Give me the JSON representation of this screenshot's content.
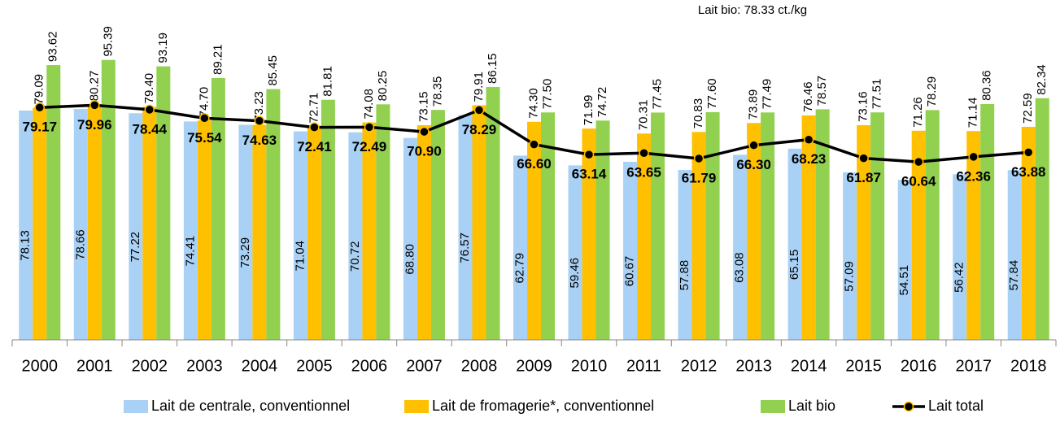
{
  "chart_data": {
    "type": "bar",
    "annotation": "Lait bio: 78.33 ct./kg",
    "categories": [
      "2000",
      "2001",
      "2002",
      "2003",
      "2004",
      "2005",
      "2006",
      "2007",
      "2008",
      "2009",
      "2010",
      "2011",
      "2012",
      "2013",
      "2014",
      "2015",
      "2016",
      "2017",
      "2018"
    ],
    "ylim": [
      0,
      115.8
    ],
    "series": [
      {
        "name": "Lait de centrale, conventionnel",
        "color": "#a9d1f5",
        "values": [
          78.13,
          78.66,
          77.22,
          74.41,
          73.29,
          71.04,
          70.72,
          68.8,
          76.57,
          62.79,
          59.46,
          60.67,
          57.88,
          63.08,
          65.15,
          57.09,
          54.51,
          56.42,
          57.84
        ],
        "value_labels": [
          "78.13",
          "78.66",
          "77.22",
          "74.41",
          "73.29",
          "71.04",
          "70.72",
          "68.80",
          "76.57",
          "62.79",
          "59.46",
          "60.67",
          "57.88",
          "63.08",
          "65.15",
          "57.09",
          "54.51",
          "56.42",
          "57.84"
        ]
      },
      {
        "name": "Lait de fromagerie*, conventionnel",
        "color": "#ffc000",
        "values": [
          79.09,
          80.27,
          79.4,
          74.7,
          73.23,
          72.71,
          74.08,
          73.15,
          79.91,
          74.3,
          71.99,
          70.31,
          70.83,
          73.89,
          76.46,
          73.16,
          71.26,
          71.14,
          72.59
        ],
        "value_labels": [
          "79.09",
          "80.27",
          "79.40",
          "74.70",
          "73.23",
          "72.71",
          "74.08",
          "73.15",
          "79.91",
          "74.30",
          "71.99",
          "70.31",
          "70.83",
          "73.89",
          "76.46",
          "73.16",
          "71.26",
          "71.14",
          "72.59"
        ]
      },
      {
        "name": "Lait bio",
        "color": "#92d050",
        "values": [
          93.62,
          95.39,
          93.19,
          89.21,
          85.45,
          81.81,
          80.25,
          78.35,
          86.15,
          77.5,
          74.72,
          77.45,
          77.6,
          77.49,
          78.57,
          77.51,
          78.29,
          80.36,
          82.34
        ],
        "value_labels": [
          "93.62",
          "95.39",
          "93.19",
          "89.21",
          "85.45",
          "81.81",
          "80.25",
          "78.35",
          "86.15",
          "77.50",
          "74.72",
          "77.45",
          "77.60",
          "77.49",
          "78.57",
          "77.51",
          "78.29",
          "80.36",
          "82.34"
        ]
      },
      {
        "name": "Lait total",
        "color": "#000000",
        "marker_color": "#ffc000",
        "type": "line",
        "values": [
          79.17,
          79.96,
          78.44,
          75.54,
          74.63,
          72.41,
          72.49,
          70.9,
          78.29,
          66.6,
          63.14,
          63.65,
          61.79,
          66.3,
          68.23,
          61.87,
          60.64,
          62.36,
          63.88
        ],
        "value_labels": [
          "79.17",
          "79.96",
          "78.44",
          "75.54",
          "74.63",
          "72.41",
          "72.49",
          "70.90",
          "78.29",
          "66.60",
          "63.14",
          "63.65",
          "61.79",
          "66.30",
          "68.23",
          "61.87",
          "60.64",
          "62.36",
          "63.88"
        ]
      }
    ]
  }
}
